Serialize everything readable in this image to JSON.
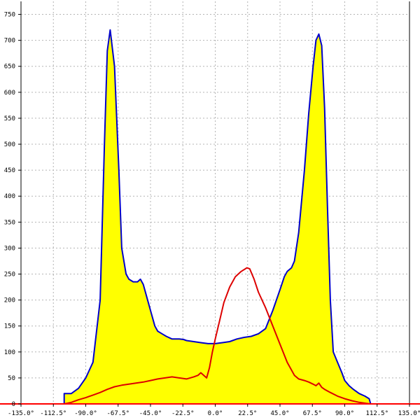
{
  "chart_data": {
    "type": "area",
    "title": "",
    "xlabel": "",
    "ylabel": "",
    "grid": true,
    "xlim": [
      -135,
      135
    ],
    "ylim": [
      0,
      775
    ],
    "x_ticks": [
      -135,
      -112.5,
      -90,
      -67.5,
      -45,
      -22.5,
      0,
      22.5,
      45,
      67.5,
      90,
      112.5,
      135
    ],
    "x_tick_labels": [
      "-135.0°",
      "-112.5°",
      "-90.0°",
      "-67.5°",
      "-45.0°",
      "-22.5°",
      "0.0°",
      "22.5°",
      "45.0°",
      "67.5°",
      "90.0°",
      "112.5°",
      "135.0°"
    ],
    "y_ticks": [
      0,
      50,
      100,
      150,
      200,
      250,
      300,
      350,
      400,
      450,
      500,
      550,
      600,
      650,
      700,
      750
    ],
    "y_tick_labels": [
      "0",
      "50",
      "100",
      "150",
      "200",
      "250",
      "300",
      "350",
      "400",
      "450",
      "500",
      "550",
      "600",
      "650",
      "700",
      "750"
    ],
    "series": [
      {
        "role": "total",
        "fill": "#ffff00",
        "stroke": "#0000cc",
        "x": [
          -105,
          -105,
          -100,
          -95,
          -90,
          -85,
          -80,
          -77,
          -75,
          -73,
          -70,
          -67,
          -65,
          -62,
          -60,
          -57,
          -54,
          -52,
          -50,
          -48,
          -45,
          -42,
          -40,
          -37,
          -34,
          -30,
          -25,
          -22,
          -20,
          -15,
          -10,
          -5,
          0,
          5,
          10,
          15,
          20,
          25,
          30,
          35,
          40,
          45,
          48,
          50,
          53,
          55,
          58,
          62,
          65,
          68,
          70,
          72,
          74,
          76,
          78,
          80,
          82,
          85,
          88,
          90,
          93,
          96,
          100,
          104,
          107,
          108
        ],
        "y": [
          0,
          20,
          20,
          30,
          50,
          80,
          200,
          500,
          680,
          720,
          650,
          450,
          300,
          250,
          240,
          235,
          235,
          240,
          230,
          210,
          180,
          150,
          140,
          135,
          130,
          125,
          125,
          124,
          122,
          120,
          118,
          116,
          116,
          118,
          120,
          125,
          128,
          130,
          135,
          145,
          180,
          220,
          245,
          255,
          262,
          275,
          330,
          450,
          560,
          650,
          700,
          712,
          690,
          570,
          380,
          200,
          100,
          80,
          60,
          45,
          35,
          28,
          20,
          15,
          10,
          0
        ]
      },
      {
        "role": "overlay",
        "stroke": "#dd0000",
        "x": [
          -105,
          -100,
          -95,
          -90,
          -85,
          -80,
          -75,
          -70,
          -65,
          -60,
          -55,
          -50,
          -45,
          -40,
          -35,
          -30,
          -25,
          -20,
          -15,
          -12,
          -10,
          -8,
          -6,
          -4,
          -2,
          0,
          3,
          6,
          10,
          14,
          18,
          22,
          24,
          27,
          30,
          35,
          40,
          45,
          50,
          55,
          58,
          62,
          65,
          68,
          70,
          72,
          74,
          76,
          80,
          85,
          90,
          95,
          100,
          105,
          108
        ],
        "y": [
          0,
          3,
          8,
          12,
          17,
          22,
          28,
          33,
          36,
          38,
          40,
          42,
          45,
          48,
          50,
          52,
          50,
          48,
          52,
          55,
          60,
          55,
          50,
          70,
          100,
          125,
          160,
          195,
          225,
          245,
          255,
          262,
          260,
          240,
          215,
          185,
          150,
          115,
          80,
          55,
          48,
          45,
          42,
          38,
          35,
          40,
          32,
          28,
          22,
          15,
          10,
          6,
          3,
          1,
          0
        ]
      }
    ],
    "baseline_color": "#ff0000",
    "grid_color": "#b4b4b4"
  }
}
